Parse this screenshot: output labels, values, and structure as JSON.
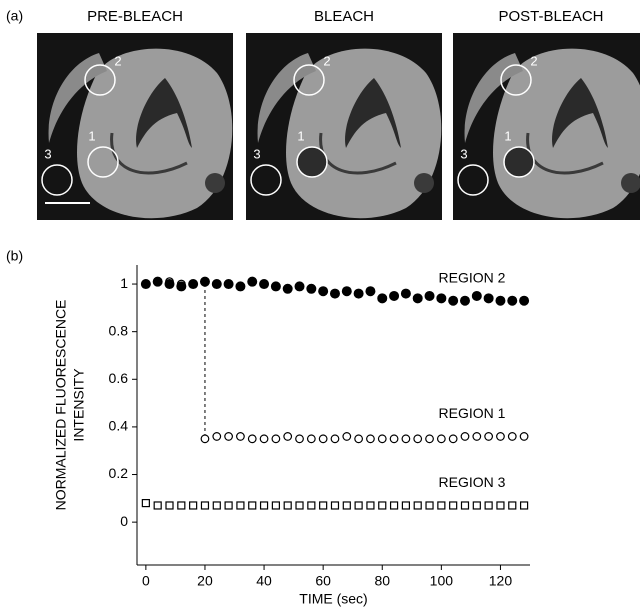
{
  "panel_a": {
    "label": "(a)",
    "images": [
      {
        "title": "PRE-BLEACH",
        "regions": [
          "1",
          "2",
          "3"
        ]
      },
      {
        "title": "BLEACH",
        "regions": [
          "1",
          "2",
          "3"
        ]
      },
      {
        "title": "POST-BLEACH",
        "regions": [
          "1",
          "2",
          "3"
        ]
      }
    ]
  },
  "chart_data": {
    "type": "scatter",
    "panel_label": "(b)",
    "xlabel": "TIME (sec)",
    "ylabel": [
      "NORMALIZED FLUORESCENCE",
      "INTENSITY"
    ],
    "x": [
      0,
      4,
      8,
      12,
      16,
      20,
      24,
      28,
      32,
      36,
      40,
      44,
      48,
      52,
      56,
      60,
      64,
      68,
      72,
      76,
      80,
      84,
      88,
      92,
      96,
      100,
      104,
      108,
      112,
      116,
      120,
      124,
      128
    ],
    "series": [
      {
        "name": "REGION 2",
        "color": "#000000",
        "marker": "filled-circle",
        "values": [
          1,
          1.01,
          1,
          0.99,
          1,
          1.01,
          1,
          1,
          0.99,
          1.01,
          1,
          0.99,
          0.98,
          0.99,
          0.98,
          0.97,
          0.96,
          0.97,
          0.96,
          0.97,
          0.94,
          0.95,
          0.96,
          0.94,
          0.95,
          0.94,
          0.93,
          0.93,
          0.95,
          0.94,
          0.93,
          0.93,
          0.93
        ]
      },
      {
        "name": "REGION 1",
        "color": "#000000",
        "marker": "open-circle",
        "values": [
          1,
          1.01,
          1.01,
          1,
          1,
          0.35,
          0.36,
          0.36,
          0.36,
          0.35,
          0.35,
          0.35,
          0.36,
          0.35,
          0.35,
          0.35,
          0.35,
          0.36,
          0.35,
          0.35,
          0.35,
          0.35,
          0.35,
          0.35,
          0.35,
          0.35,
          0.35,
          0.36,
          0.36,
          0.36,
          0.36,
          0.36,
          0.36
        ]
      },
      {
        "name": "REGION 3",
        "color": "#000000",
        "marker": "open-square",
        "values": [
          0.08,
          0.07,
          0.07,
          0.07,
          0.07,
          0.07,
          0.07,
          0.07,
          0.07,
          0.07,
          0.07,
          0.07,
          0.07,
          0.07,
          0.07,
          0.07,
          0.07,
          0.07,
          0.07,
          0.07,
          0.07,
          0.07,
          0.07,
          0.07,
          0.07,
          0.07,
          0.07,
          0.07,
          0.07,
          0.07,
          0.07,
          0.07,
          0.07
        ]
      }
    ],
    "xlim": [
      -3,
      130
    ],
    "ylim": [
      -0.18,
      1.08
    ],
    "xticks": [
      0,
      20,
      40,
      60,
      80,
      100,
      120
    ],
    "yticks": [
      0,
      0.2,
      0.4,
      0.6,
      0.8,
      1
    ],
    "grid": false
  }
}
